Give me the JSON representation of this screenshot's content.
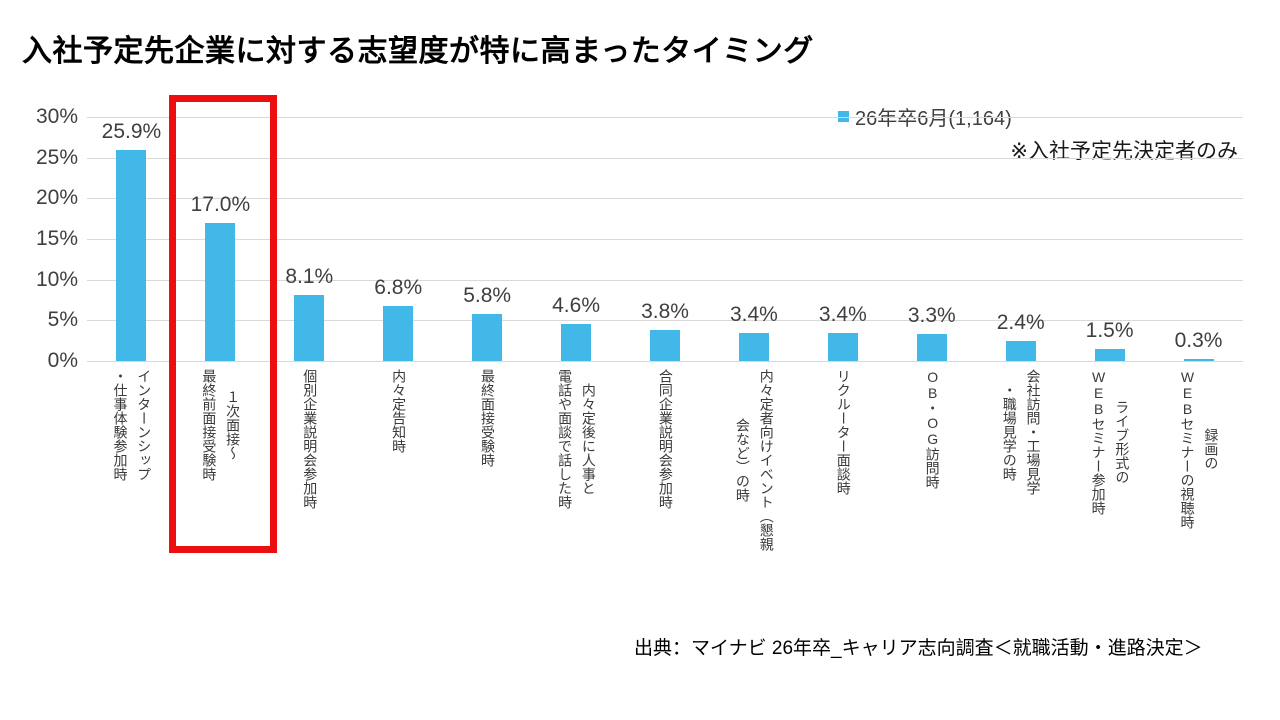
{
  "title": "入社予定先企業に対する志望度が特に高まったタイミング",
  "legend": {
    "label": "26年卒6月(1,164)",
    "color": "#41b8e8"
  },
  "note": "※入社予定先決定者のみ",
  "source": "出典：マイナビ 26年卒_キャリア志向調査＜就職活動・進路決定＞",
  "chart_data": {
    "type": "bar",
    "title": "入社予定先企業に対する志望度が特に高まったタイミング",
    "series_name": "26年卒6月(1,164)",
    "categories": [
      "インターンシップ\n・仕事体験参加時",
      "１次面接～\n最終前面接受験時",
      "個別企業説明会参加時",
      "内々定告知時",
      "最終面接受験時",
      "内々定後に人事と\n電話や面談で話した時",
      "合同企業説明会参加時",
      "内々定者向けイベント（懇親\n会など）の時",
      "リクルーター面談時",
      "OB・OG訪問時",
      "会社訪問・工場見学\n・職場見学の時",
      "ライブ形式の\nWEBセミナー参加時",
      "録画の\nWEBセミナーの視聴時"
    ],
    "values": [
      25.9,
      17.0,
      8.1,
      6.8,
      5.8,
      4.6,
      3.8,
      3.4,
      3.4,
      3.3,
      2.4,
      1.5,
      0.3
    ],
    "value_labels": [
      "25.9%",
      "17.0%",
      "8.1%",
      "6.8%",
      "5.8%",
      "4.6%",
      "3.8%",
      "3.4%",
      "3.4%",
      "3.3%",
      "2.4%",
      "1.5%",
      "0.3%"
    ],
    "xlabel": "",
    "ylabel": "",
    "ylim": [
      0,
      30
    ],
    "yticks": [
      "30%",
      "25%",
      "20%",
      "15%",
      "10%",
      "5%",
      "0%"
    ],
    "grid": true,
    "legend_position": "top-right",
    "bar_color": "#41b8e8",
    "highlight": {
      "category_index": 1,
      "color": "#ec0f0f",
      "note": "red box around 1次面接～最終前面接受験時 bar"
    }
  }
}
